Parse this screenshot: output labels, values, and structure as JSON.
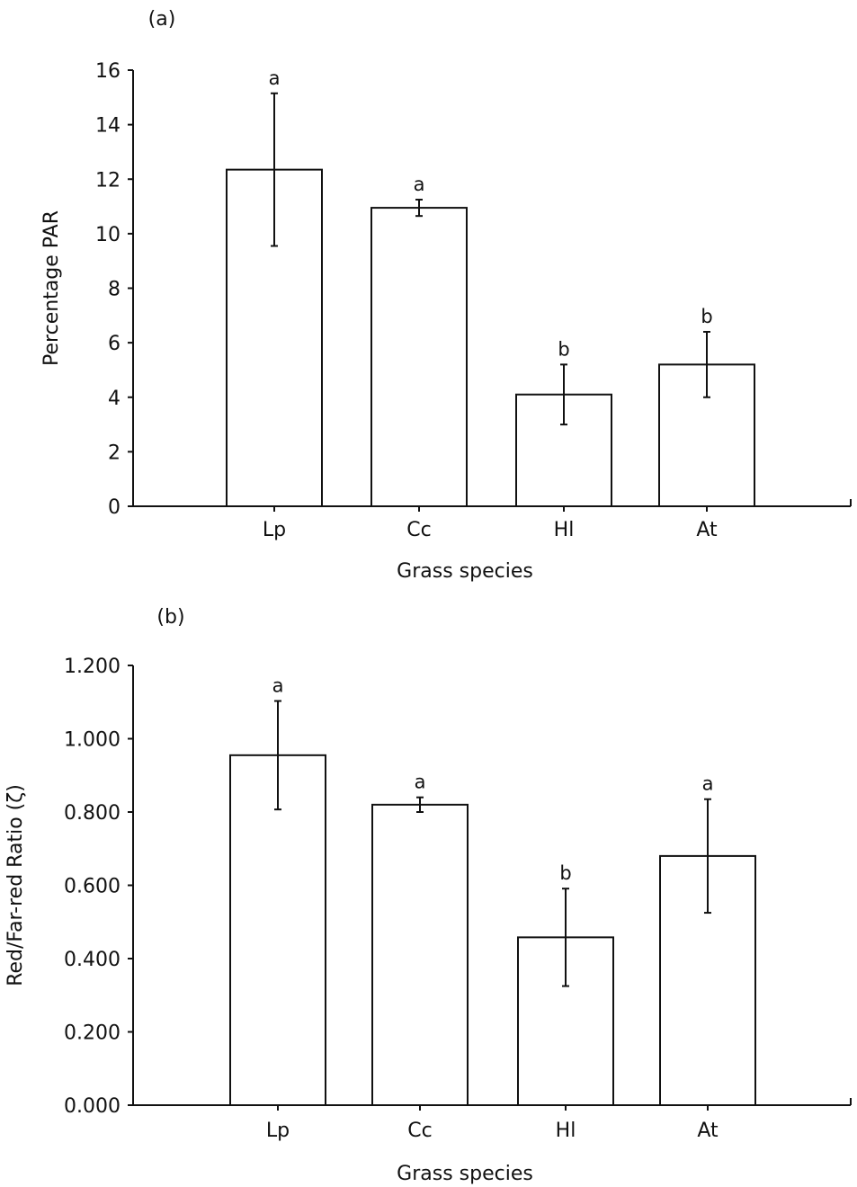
{
  "chart_data": [
    {
      "panel_label": "(a)",
      "type": "bar",
      "categories": [
        "Lp",
        "Cc",
        "Hl",
        "At"
      ],
      "values": [
        12.35,
        10.95,
        4.1,
        5.2
      ],
      "errors": [
        2.8,
        0.3,
        1.1,
        1.2
      ],
      "significance": [
        "a",
        "a",
        "b",
        "b"
      ],
      "xlabel": "Grass species",
      "ylabel": "Percentage PAR",
      "ylim": [
        0,
        16
      ],
      "yticks": [
        "0",
        "2",
        "4",
        "6",
        "8",
        "10",
        "12",
        "14",
        "16"
      ],
      "grid": false
    },
    {
      "panel_label": "(b)",
      "type": "bar",
      "categories": [
        "Lp",
        "Cc",
        "Hl",
        "At"
      ],
      "values": [
        0.955,
        0.82,
        0.458,
        0.68
      ],
      "errors": [
        0.148,
        0.02,
        0.133,
        0.155
      ],
      "significance": [
        "a",
        "a",
        "b",
        "a"
      ],
      "xlabel": "Grass species",
      "ylabel": "Red/Far-red Ratio (ζ)",
      "ylim": [
        0,
        1.2
      ],
      "yticks": [
        "0.000",
        "0.200",
        "0.400",
        "0.600",
        "0.800",
        "1.000",
        "1.200"
      ],
      "grid": false
    }
  ]
}
